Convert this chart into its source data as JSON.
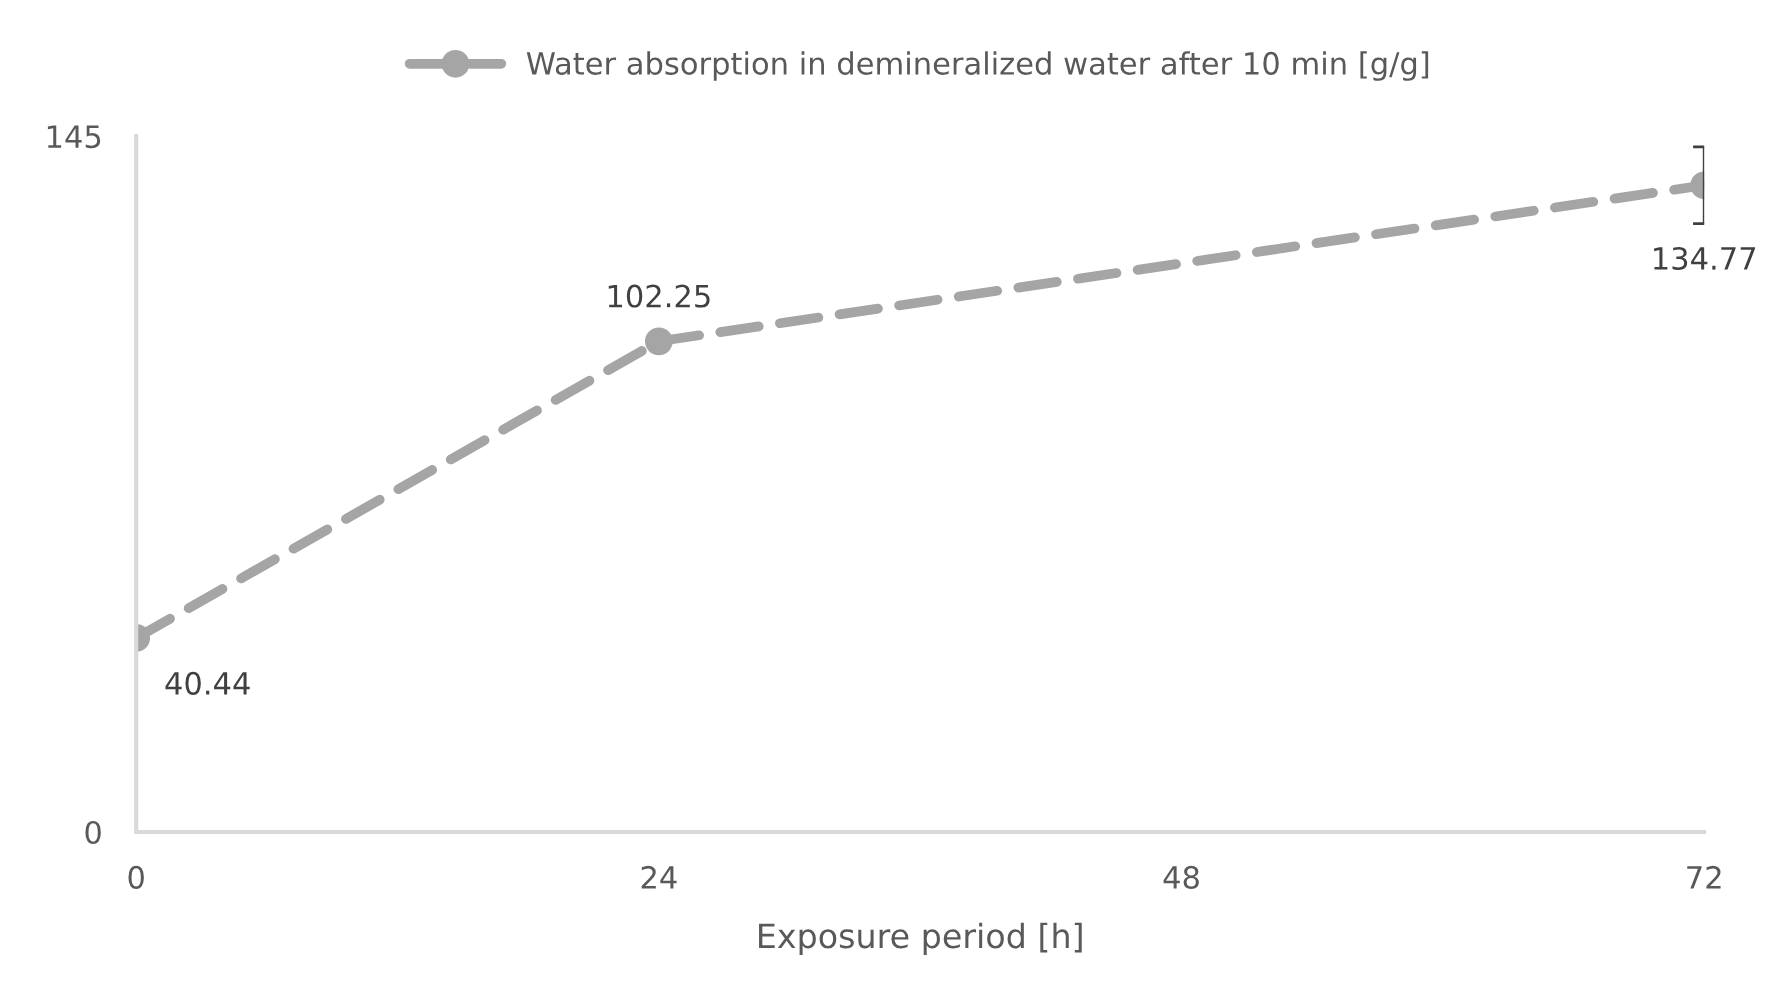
{
  "chart_data": {
    "type": "line",
    "xlabel": "Exposure period [h]",
    "x": [
      0,
      24,
      72
    ],
    "series": [
      {
        "name": "Water absorption in demineralized water after 10 min [g/g]",
        "color": "#a5a5a5",
        "values": [
          40.44,
          102.25,
          134.77
        ],
        "errors": [
          null,
          null,
          8
        ]
      }
    ],
    "xlim": [
      0,
      72
    ],
    "xticks": [
      0,
      24,
      48,
      72
    ],
    "ylim": [
      0,
      145
    ],
    "yticks": [
      0,
      145
    ],
    "data_labels": true,
    "grid": false,
    "legend": "top",
    "marker": "circle",
    "line_style": "dashed"
  }
}
